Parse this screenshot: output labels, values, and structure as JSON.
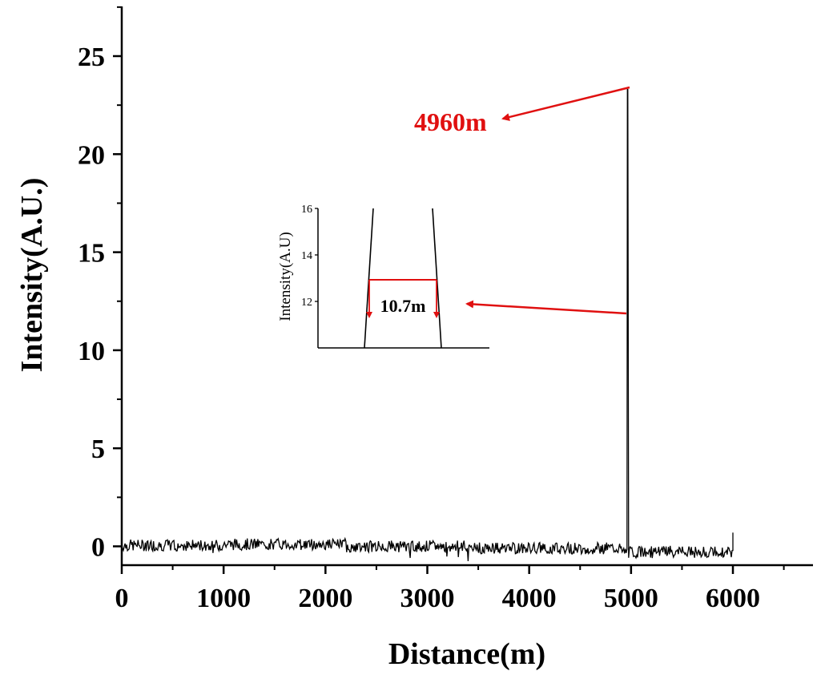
{
  "chart_data": {
    "type": "line",
    "xlabel": "Distance(m)",
    "ylabel": "Intensity(A.U.)",
    "xlim": [
      0,
      6800
    ],
    "ylim": [
      -1,
      27.5
    ],
    "xticks": [
      0,
      1000,
      2000,
      3000,
      4000,
      5000,
      6000
    ],
    "yticks": [
      0,
      5,
      10,
      15,
      20,
      25
    ],
    "xtick_labels": [
      "0",
      "1000",
      "2000",
      "3000",
      "4000",
      "5000",
      "6000"
    ],
    "ytick_labels": [
      "0",
      "5",
      "10",
      "15",
      "20",
      "25"
    ],
    "grid": false,
    "series": [
      {
        "description_points": [
          [
            0,
            0
          ],
          [
            500,
            0.1
          ],
          [
            1000,
            0.1
          ],
          [
            2000,
            0.2
          ],
          [
            3000,
            0
          ],
          [
            4000,
            0
          ],
          [
            4800,
            -0.2
          ],
          [
            4960,
            -0.2
          ],
          [
            4965,
            23.3
          ],
          [
            4975,
            23.3
          ],
          [
            4980,
            -0.3
          ],
          [
            5500,
            -0.4
          ],
          [
            5990,
            -0.3
          ],
          [
            6000,
            0.7
          ]
        ],
        "noise_amplitude": 0.3,
        "peak_position": 4960,
        "peak_value": 23.3
      }
    ],
    "inset": {
      "ylabel": "Intensity(A.U)",
      "ylim": [
        10,
        16
      ],
      "yticks": [
        12,
        14,
        16
      ],
      "ytick_labels": [
        "12",
        "14",
        "16"
      ],
      "fwhm_level": 13
    },
    "annotations": {
      "peak_label": "4960m",
      "width_label": "10.7m"
    },
    "colors": {
      "line": "#000000",
      "annotation": "#e01010"
    }
  }
}
